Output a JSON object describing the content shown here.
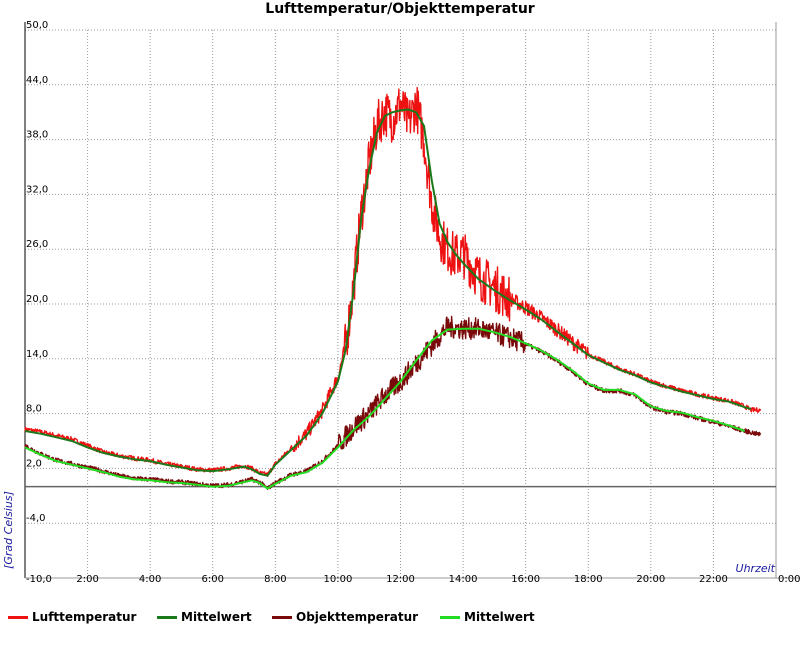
{
  "chart_data": {
    "type": "line",
    "title": "Lufttemperatur/Objekttemperatur",
    "xlabel": "Uhrzeit",
    "ylabel": "[Grad Celsius]",
    "ylim": [
      -10,
      50
    ],
    "xlim": [
      0,
      24
    ],
    "y_ticks": [
      "-10,0",
      "-4,0",
      "2,0",
      "8,0",
      "14,0",
      "20,0",
      "26,0",
      "32,0",
      "38,0",
      "44,0",
      "50,0"
    ],
    "y_tick_values": [
      -10,
      -4,
      2,
      8,
      14,
      20,
      26,
      32,
      38,
      44,
      50
    ],
    "x_ticks": [
      "2:00",
      "4:00",
      "6:00",
      "8:00",
      "10:00",
      "12:00",
      "14:00",
      "16:00",
      "18:00",
      "20:00",
      "22:00",
      "0:00"
    ],
    "x_tick_values": [
      2,
      4,
      6,
      8,
      10,
      12,
      14,
      16,
      18,
      20,
      22,
      24
    ],
    "grid": true,
    "zero_line": 0,
    "legend_position": "bottom",
    "series": [
      {
        "name": "Lufttemperatur",
        "color": "#ee1111",
        "noisy": true,
        "x": [
          0,
          0.5,
          1,
          1.5,
          2,
          2.5,
          3,
          3.5,
          4,
          4.5,
          5,
          5.5,
          6,
          6.5,
          7,
          7.25,
          7.5,
          7.75,
          8,
          8.5,
          9,
          9.5,
          10,
          10.25,
          10.5,
          10.75,
          11,
          11.25,
          11.5,
          11.75,
          12,
          12.25,
          12.5,
          12.75,
          13,
          13.25,
          13.5,
          13.75,
          14,
          14.5,
          15,
          15.5,
          16,
          16.5,
          17,
          17.5,
          18,
          18.5,
          19,
          19.5,
          20,
          20.5,
          21,
          21.5,
          22,
          22.5,
          23,
          23.2,
          23.5
        ],
        "y": [
          6.3,
          6.0,
          5.6,
          5.2,
          4.5,
          3.8,
          3.4,
          3.1,
          2.9,
          2.5,
          2.2,
          1.9,
          1.8,
          2.0,
          2.3,
          2.0,
          1.5,
          1.3,
          2.5,
          4.2,
          5.8,
          8.3,
          12.0,
          15.5,
          22.0,
          30.0,
          35.5,
          39.5,
          41.0,
          40.2,
          42.0,
          39.8,
          42.0,
          38.0,
          31.0,
          27.5,
          26.0,
          25.2,
          25.5,
          23.0,
          21.8,
          20.6,
          19.6,
          18.5,
          17.2,
          15.8,
          14.5,
          13.7,
          12.9,
          12.3,
          11.5,
          11.0,
          10.5,
          10.1,
          9.7,
          9.4,
          8.8,
          8.4,
          8.4
        ]
      },
      {
        "name": "Mittelwert",
        "color": "#1a7a1a",
        "noisy": false,
        "x": [
          0,
          0.5,
          1,
          1.5,
          2,
          2.5,
          3,
          3.5,
          4,
          4.5,
          5,
          5.5,
          6,
          6.5,
          7,
          7.25,
          7.5,
          7.75,
          8,
          8.5,
          9,
          9.5,
          10,
          10.25,
          10.5,
          10.75,
          11,
          11.25,
          11.5,
          11.75,
          12,
          12.25,
          12.5,
          12.75,
          13,
          13.25,
          13.5,
          13.75,
          14,
          14.5,
          15,
          15.5,
          16,
          16.5,
          17,
          17.5,
          18,
          18.5,
          19,
          19.5,
          20,
          20.5,
          21,
          21.5,
          22,
          22.5,
          23,
          23.2
        ],
        "y": [
          6.1,
          5.8,
          5.4,
          5.0,
          4.3,
          3.7,
          3.3,
          3.0,
          2.8,
          2.4,
          2.1,
          1.8,
          1.7,
          1.9,
          2.2,
          1.9,
          1.4,
          1.2,
          2.4,
          4.0,
          5.6,
          8.0,
          11.5,
          15.0,
          21.5,
          29.5,
          34.8,
          38.8,
          40.6,
          41.0,
          41.2,
          41.3,
          41.0,
          39.5,
          33.5,
          28.8,
          26.8,
          25.5,
          24.5,
          22.7,
          21.5,
          20.4,
          19.4,
          18.3,
          17.0,
          15.7,
          14.4,
          13.6,
          12.8,
          12.2,
          11.4,
          10.9,
          10.4,
          10.0,
          9.6,
          9.3,
          8.7,
          8.5
        ]
      },
      {
        "name": "Objekttemperatur",
        "color": "#7a0a0a",
        "noisy": true,
        "x": [
          0,
          0.5,
          1,
          1.5,
          2,
          2.5,
          3,
          3.5,
          4,
          4.5,
          5,
          5.5,
          6,
          6.5,
          7,
          7.25,
          7.5,
          7.75,
          8,
          8.5,
          9,
          9.5,
          10,
          10.5,
          11,
          11.5,
          12,
          12.5,
          13,
          13.5,
          14,
          14.5,
          15,
          15.5,
          16,
          16.5,
          17,
          17.5,
          18,
          18.5,
          19,
          19.5,
          20,
          20.5,
          21,
          21.5,
          22,
          22.5,
          23,
          23.5
        ],
        "y": [
          4.5,
          3.6,
          2.9,
          2.5,
          2.1,
          1.7,
          1.2,
          0.9,
          0.8,
          0.6,
          0.5,
          0.3,
          0.1,
          0.2,
          0.6,
          0.8,
          0.5,
          -0.2,
          0.4,
          1.3,
          1.7,
          2.8,
          4.5,
          6.5,
          8.0,
          10.0,
          11.5,
          13.5,
          15.5,
          17.5,
          17.3,
          17.3,
          16.8,
          16.3,
          15.6,
          14.8,
          13.8,
          12.6,
          11.2,
          10.5,
          10.5,
          10.0,
          8.7,
          8.2,
          8.0,
          7.5,
          7.1,
          6.6,
          6.1,
          5.7
        ]
      },
      {
        "name": "Mittelwert",
        "color": "#22dd22",
        "noisy": false,
        "x": [
          0,
          0.5,
          1,
          1.5,
          2,
          2.5,
          3,
          3.5,
          4,
          4.5,
          5,
          5.5,
          6,
          6.5,
          7,
          7.25,
          7.5,
          7.75,
          8,
          8.5,
          9,
          9.5,
          10,
          10.5,
          11,
          11.5,
          12,
          12.5,
          13,
          13.5,
          14,
          14.5,
          15,
          15.5,
          16,
          16.5,
          17,
          17.5,
          18,
          18.5,
          19,
          19.5,
          20,
          20.5,
          21,
          21.5,
          22,
          22.5,
          23
        ],
        "y": [
          4.3,
          3.5,
          2.8,
          2.4,
          2.0,
          1.6,
          1.1,
          0.8,
          0.7,
          0.5,
          0.4,
          0.2,
          0.0,
          0.1,
          0.5,
          0.7,
          0.4,
          -0.2,
          0.3,
          1.2,
          1.6,
          2.6,
          4.3,
          6.2,
          7.7,
          9.6,
          11.5,
          13.8,
          16.0,
          17.2,
          17.3,
          17.3,
          16.9,
          16.4,
          15.7,
          14.9,
          13.9,
          12.7,
          11.3,
          10.6,
          10.6,
          10.1,
          8.8,
          8.3,
          8.1,
          7.6,
          7.2,
          6.7,
          6.1
        ]
      }
    ]
  }
}
